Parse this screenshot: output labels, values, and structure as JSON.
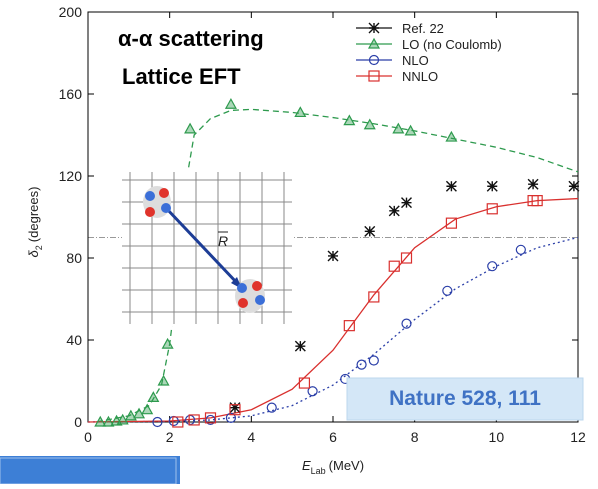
{
  "chart_data": {
    "type": "scatter",
    "title": "α-α scattering",
    "subtitle": "Lattice EFT",
    "annotation": "Nature 528, 111",
    "inset_label": "R",
    "xlabel": {
      "symbol": "E",
      "sub": "Lab",
      "unit": "(MeV)"
    },
    "ylabel": {
      "symbol": "δ",
      "sub": "2",
      "unit": "(degrees)"
    },
    "xlim": [
      0,
      12
    ],
    "ylim": [
      0,
      200
    ],
    "xticks": [
      0,
      2,
      4,
      6,
      8,
      10,
      12
    ],
    "yticks": [
      0,
      40,
      80,
      120,
      160,
      200
    ],
    "hlines": [
      90
    ],
    "legend": "upper right",
    "series": [
      {
        "name": "Ref. 22",
        "color": "#111111",
        "marker": "asterisk",
        "x": [
          3.6,
          5.2,
          6.0,
          6.9,
          7.5,
          7.8,
          8.9,
          9.9,
          10.9,
          11.9
        ],
        "values": [
          7,
          37,
          81,
          93,
          103,
          107,
          115,
          115,
          116,
          115
        ],
        "curve_x": [],
        "curve_y": []
      },
      {
        "name": "LO (no Coulomb)",
        "color": "#2e9a4e",
        "marker": "triangle",
        "x": [
          0.3,
          0.5,
          0.7,
          0.85,
          1.05,
          1.25,
          1.45,
          1.6,
          1.85,
          1.95,
          2.5,
          3.5,
          5.2,
          6.4,
          6.9,
          7.6,
          7.9,
          8.9
        ],
        "values": [
          0,
          0,
          0.5,
          1,
          3,
          4,
          6,
          12,
          20,
          38,
          143,
          155,
          151,
          147,
          145,
          143,
          142,
          139
        ],
        "curve_x": [
          0.2,
          1.0,
          1.5,
          1.8,
          2.0,
          2.2,
          null,
          2.3,
          2.6,
          3.0,
          3.5,
          4.0,
          5,
          6,
          7,
          8,
          9,
          10,
          11,
          12
        ],
        "curve_y": [
          0,
          3,
          8,
          18,
          38,
          70,
          null,
          105,
          140,
          148,
          152,
          152.5,
          151,
          148.5,
          145.5,
          142,
          138,
          134,
          129,
          122
        ]
      },
      {
        "name": "NLO",
        "color": "#2b3fa8",
        "marker": "circle",
        "x": [
          1.7,
          2.1,
          2.5,
          3.0,
          3.5,
          4.5,
          5.5,
          6.3,
          6.7,
          7.0,
          7.8,
          8.8,
          9.9,
          10.6
        ],
        "values": [
          0,
          0.5,
          1,
          1,
          2,
          7,
          15,
          21,
          28,
          30,
          48,
          64,
          76,
          84
        ],
        "curve_x": [
          0,
          2,
          3,
          4,
          5,
          6,
          7,
          8,
          9,
          10,
          11,
          12
        ],
        "curve_y": [
          0,
          0.3,
          1,
          3,
          8,
          18,
          33,
          50,
          65,
          76,
          85,
          90
        ]
      },
      {
        "name": "NNLO",
        "color": "#d9302e",
        "marker": "square",
        "x": [
          2.2,
          2.6,
          3.0,
          3.6,
          5.3,
          6.4,
          7.0,
          7.5,
          7.8,
          8.9,
          9.9,
          10.9,
          11.0
        ],
        "values": [
          0,
          1,
          2,
          6,
          19,
          47,
          61,
          76,
          80,
          97,
          104,
          108,
          108
        ],
        "curve_x": [
          0,
          2,
          3,
          4,
          5,
          6,
          7,
          8,
          9,
          10,
          11,
          12
        ],
        "curve_y": [
          0,
          0.5,
          2,
          6,
          16,
          35,
          62,
          85,
          99,
          105,
          108,
          109
        ]
      }
    ]
  }
}
